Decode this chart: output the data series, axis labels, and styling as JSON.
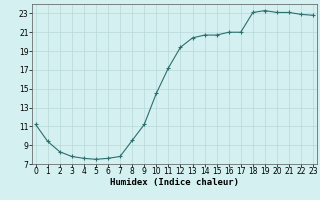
{
  "x": [
    0,
    1,
    2,
    3,
    4,
    5,
    6,
    7,
    8,
    9,
    10,
    11,
    12,
    13,
    14,
    15,
    16,
    17,
    18,
    19,
    20,
    21,
    22,
    23
  ],
  "y": [
    11.2,
    9.4,
    8.3,
    7.8,
    7.6,
    7.5,
    7.6,
    7.8,
    9.5,
    11.2,
    14.5,
    17.2,
    19.4,
    20.4,
    20.7,
    20.7,
    21.0,
    21.0,
    23.1,
    23.3,
    23.1,
    23.1,
    22.9,
    22.8
  ],
  "xlabel": "Humidex (Indice chaleur)",
  "background_color": "#d4f0f0",
  "grid_color": "#b8d8d8",
  "line_color": "#2d6e6e",
  "marker_color": "#2d6e6e",
  "xlim": [
    -0.3,
    23.3
  ],
  "ylim": [
    7,
    24
  ],
  "yticks": [
    7,
    9,
    11,
    13,
    15,
    17,
    19,
    21,
    23
  ],
  "xticks": [
    0,
    1,
    2,
    3,
    4,
    5,
    6,
    7,
    8,
    9,
    10,
    11,
    12,
    13,
    14,
    15,
    16,
    17,
    18,
    19,
    20,
    21,
    22,
    23
  ],
  "xlabel_fontsize": 6.5,
  "tick_fontsize": 5.5,
  "linewidth": 0.8,
  "markersize": 3.5,
  "markeredgewidth": 0.8
}
